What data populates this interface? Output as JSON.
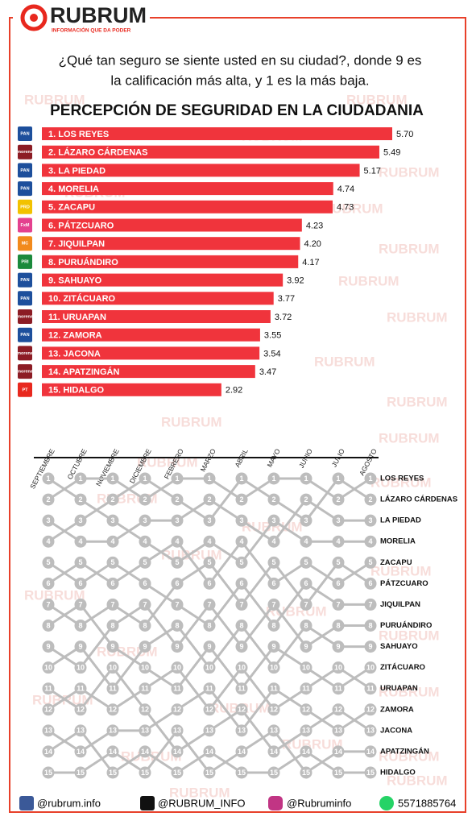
{
  "header": {
    "brand": "RUBRUM",
    "tagline": "INFORMACIÓN QUE DA PODER",
    "question": [
      "¿Qué tan seguro se siente usted en su ciudad?, donde 9 es",
      "la calificación más alta, y  1 es la más baja."
    ]
  },
  "watermark": "RUBRUM",
  "chart_data": [
    {
      "type": "bar",
      "title": "PERCEPCIÓN DE SEGURIDAD EN LA CIUDADANIA",
      "color": "#f0343c",
      "categories": [
        "1. LOS REYES",
        "2. LÁZARO CÁRDENAS",
        "3. LA PIEDAD",
        "4. MORELIA",
        "5. ZACAPU",
        "6. PÁTZCUARO",
        "7. JIQUILPAN",
        "8. PURUÁNDIRO",
        "9. SAHUAYO",
        "10. ZITÁCUARO",
        "11. URUAPAN",
        "12. ZAMORA",
        "13. JACONA",
        "14. APATZINGÁN",
        "15. HIDALGO"
      ],
      "values": [
        5.7,
        5.49,
        5.17,
        4.74,
        4.73,
        4.23,
        4.2,
        4.17,
        3.92,
        3.77,
        3.72,
        3.55,
        3.54,
        3.47,
        2.92
      ],
      "value_labels": [
        "5.70",
        "5.49",
        "5.17",
        "4.74",
        "4.73",
        "4.23",
        "4.20",
        "4.17",
        "3.92",
        "3.77",
        "3.72",
        "3.55",
        "3.54",
        "3.47",
        "2.92"
      ],
      "parties": [
        "PAN",
        "morena",
        "PAN",
        "PAN",
        "PRD",
        "FxM",
        "MC",
        "PRI",
        "PAN",
        "PAN",
        "morena",
        "PAN",
        "morena",
        "morena",
        "PT"
      ],
      "party_colors": [
        "#1d4f9c",
        "#8c1c24",
        "#1d4f9c",
        "#1d4f9c",
        "#f2c200",
        "#e4418f",
        "#f28a1c",
        "#1b8a3c",
        "#1d4f9c",
        "#1d4f9c",
        "#8c1c24",
        "#1d4f9c",
        "#8c1c24",
        "#8c1c24",
        "#e8281e"
      ]
    },
    {
      "type": "bump",
      "color": "#bdbdbd",
      "categories": [
        "SEPTIEMBRE",
        "OCTUBRE",
        "NOVIEMBRE",
        "DICIEMBRE",
        "FEBRERO",
        "MARZO",
        "ABRIL",
        "MAYO",
        "JUNIO",
        "JULIO",
        "AGOSTO"
      ],
      "ylim": [
        1,
        15
      ],
      "yticks": [
        1,
        2,
        3,
        4,
        5,
        6,
        7,
        8,
        9,
        10,
        11,
        12,
        13,
        14,
        15
      ],
      "series": [
        {
          "name": "LOS REYES",
          "values": [
            2,
            1,
            1,
            2,
            1,
            1,
            2,
            1,
            1,
            2,
            1
          ]
        },
        {
          "name": "LÁZARO CÁRDENAS",
          "values": [
            4,
            3,
            2,
            1,
            2,
            3,
            1,
            2,
            3,
            1,
            2
          ]
        },
        {
          "name": "LA PIEDAD",
          "values": [
            3,
            4,
            4,
            3,
            3,
            2,
            3,
            4,
            2,
            3,
            3
          ]
        },
        {
          "name": "MORELIA",
          "values": [
            1,
            2,
            3,
            4,
            5,
            4,
            5,
            3,
            4,
            4,
            4
          ]
        },
        {
          "name": "ZACAPU",
          "values": [
            6,
            5,
            6,
            5,
            4,
            6,
            4,
            6,
            5,
            6,
            5
          ]
        },
        {
          "name": "PÁTZCUARO",
          "values": [
            7,
            8,
            7,
            8,
            6,
            5,
            7,
            5,
            7,
            5,
            6
          ]
        },
        {
          "name": "JIQUILPAN",
          "values": [
            5,
            6,
            5,
            6,
            7,
            8,
            6,
            8,
            6,
            7,
            7
          ]
        },
        {
          "name": "PURUÁNDIRO",
          "values": [
            9,
            10,
            8,
            7,
            9,
            7,
            9,
            7,
            9,
            8,
            8
          ]
        },
        {
          "name": "SAHUAYO",
          "values": [
            10,
            9,
            11,
            9,
            8,
            10,
            8,
            10,
            8,
            9,
            9
          ]
        },
        {
          "name": "ZITÁCUARO",
          "values": [
            8,
            7,
            9,
            10,
            11,
            9,
            11,
            9,
            10,
            11,
            10
          ]
        },
        {
          "name": "URUAPAN",
          "values": [
            12,
            11,
            12,
            11,
            10,
            12,
            10,
            12,
            11,
            10,
            11
          ]
        },
        {
          "name": "ZAMORA",
          "values": [
            13,
            14,
            13,
            13,
            12,
            11,
            13,
            11,
            12,
            13,
            12
          ]
        },
        {
          "name": "JACONA",
          "values": [
            11,
            12,
            10,
            12,
            14,
            13,
            12,
            14,
            13,
            12,
            13
          ]
        },
        {
          "name": "APATZINGÁN",
          "values": [
            15,
            15,
            14,
            15,
            13,
            15,
            14,
            13,
            15,
            14,
            14
          ]
        },
        {
          "name": "HIDALGO",
          "values": [
            14,
            13,
            15,
            14,
            15,
            14,
            15,
            15,
            14,
            15,
            15
          ]
        }
      ]
    }
  ],
  "footer": {
    "facebook": "@rubrum.info",
    "x": "@RUBRUM_INFO",
    "instagram": "@Rubruminfo",
    "whatsapp": "5571885764"
  }
}
